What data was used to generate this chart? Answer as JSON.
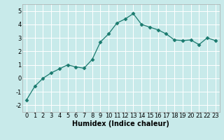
{
  "x": [
    0,
    1,
    2,
    3,
    4,
    5,
    6,
    7,
    8,
    9,
    10,
    11,
    12,
    13,
    14,
    15,
    16,
    17,
    18,
    19,
    20,
    21,
    22,
    23
  ],
  "y": [
    -1.6,
    -0.6,
    0.0,
    0.4,
    0.7,
    1.0,
    0.85,
    0.75,
    1.4,
    2.7,
    3.3,
    4.1,
    4.4,
    4.8,
    4.0,
    3.8,
    3.6,
    3.3,
    2.85,
    2.8,
    2.85,
    2.5,
    3.0,
    2.8
  ],
  "line_color": "#1a7a6e",
  "marker": "D",
  "marker_size": 2.5,
  "bg_color": "#c8eaea",
  "grid_color": "#ffffff",
  "xlabel": "Humidex (Indice chaleur)",
  "xlabel_fontsize": 7,
  "tick_fontsize": 6,
  "xlim": [
    -0.5,
    23.5
  ],
  "ylim": [
    -2.5,
    5.5
  ],
  "yticks": [
    -2,
    -1,
    0,
    1,
    2,
    3,
    4,
    5
  ],
  "xticks": [
    0,
    1,
    2,
    3,
    4,
    5,
    6,
    7,
    8,
    9,
    10,
    11,
    12,
    13,
    14,
    15,
    16,
    17,
    18,
    19,
    20,
    21,
    22,
    23
  ]
}
